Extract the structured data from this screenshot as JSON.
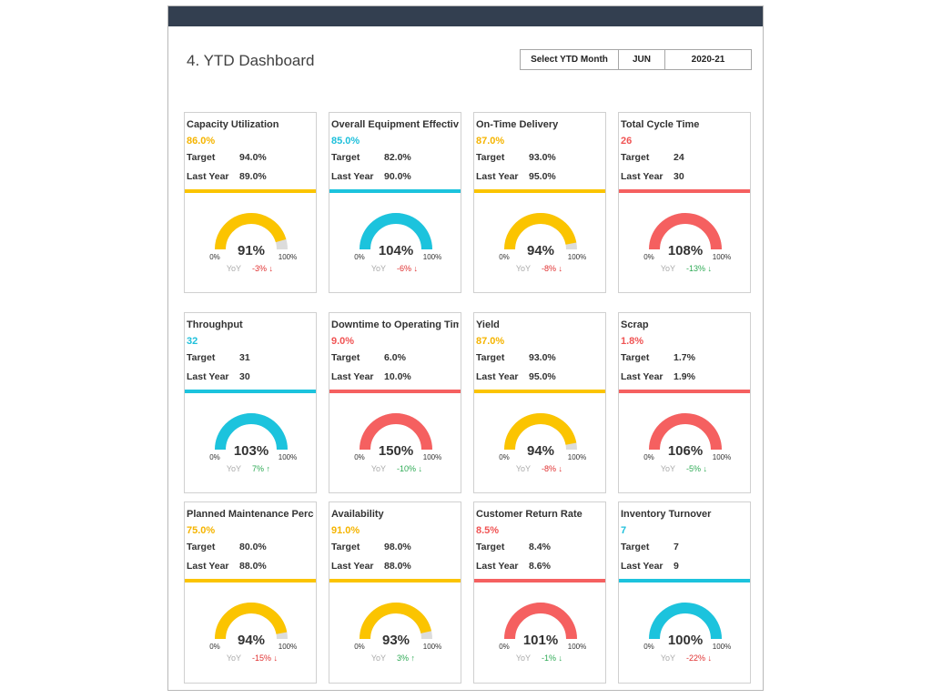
{
  "page": {
    "title": "4. YTD Dashboard"
  },
  "selector": {
    "label": "Select YTD Month",
    "month": "JUN",
    "year": "2020-21"
  },
  "colors": {
    "yellow": "#fbc400",
    "cyan": "#1cc3dd",
    "red": "#f56060",
    "gauge_track": "#dcdcdc",
    "up_green": "#2eaa55",
    "down_red": "#e03030"
  },
  "gauge_labels": {
    "min": "0%",
    "max": "100%",
    "yoy": "YoY"
  },
  "cards": [
    {
      "title": "Capacity Utilization",
      "value": "86.0%",
      "target_label": "Target",
      "target": "94.0%",
      "last_label": "Last Year",
      "last": "89.0%",
      "color": "yellow",
      "fraction": 0.91,
      "percent": "91%",
      "yoy": "-3% ↓",
      "yoy_dir": "red"
    },
    {
      "title": "Overall Equipment Effectiveness",
      "value": "85.0%",
      "target_label": "Target",
      "target": "82.0%",
      "last_label": "Last Year",
      "last": "90.0%",
      "color": "cyan",
      "fraction": 1.0,
      "percent": "104%",
      "yoy": "-6% ↓",
      "yoy_dir": "red"
    },
    {
      "title": "On-Time Delivery",
      "value": "87.0%",
      "target_label": "Target",
      "target": "93.0%",
      "last_label": "Last Year",
      "last": "95.0%",
      "color": "yellow",
      "fraction": 0.94,
      "percent": "94%",
      "yoy": "-8% ↓",
      "yoy_dir": "red"
    },
    {
      "title": "Total Cycle Time",
      "value": "26",
      "target_label": "Target",
      "target": "24",
      "last_label": "Last Year",
      "last": "30",
      "color": "red",
      "fraction": 1.0,
      "percent": "108%",
      "yoy": "-13% ↓",
      "yoy_dir": "green"
    },
    {
      "title": "Throughput",
      "value": "32",
      "target_label": "Target",
      "target": "31",
      "last_label": "Last Year",
      "last": "30",
      "color": "cyan",
      "fraction": 1.0,
      "percent": "103%",
      "yoy": "7% ↑",
      "yoy_dir": "green"
    },
    {
      "title": "Downtime to Operating Time",
      "value": "9.0%",
      "target_label": "Target",
      "target": "6.0%",
      "last_label": "Last Year",
      "last": "10.0%",
      "color": "red",
      "fraction": 1.0,
      "percent": "150%",
      "yoy": "-10% ↓",
      "yoy_dir": "green"
    },
    {
      "title": "Yield",
      "value": "87.0%",
      "target_label": "Target",
      "target": "93.0%",
      "last_label": "Last Year",
      "last": "95.0%",
      "color": "yellow",
      "fraction": 0.94,
      "percent": "94%",
      "yoy": "-8% ↓",
      "yoy_dir": "red"
    },
    {
      "title": "Scrap",
      "value": "1.8%",
      "target_label": "Target",
      "target": "1.7%",
      "last_label": "Last Year",
      "last": "1.9%",
      "color": "red",
      "fraction": 1.0,
      "percent": "106%",
      "yoy": "-5% ↓",
      "yoy_dir": "green"
    },
    {
      "title": "Planned Maintenance Percentage",
      "value": "75.0%",
      "target_label": "Target",
      "target": "80.0%",
      "last_label": "Last Year",
      "last": "88.0%",
      "color": "yellow",
      "fraction": 0.94,
      "percent": "94%",
      "yoy": "-15% ↓",
      "yoy_dir": "red"
    },
    {
      "title": "Availability",
      "value": "91.0%",
      "target_label": "Target",
      "target": "98.0%",
      "last_label": "Last Year",
      "last": "88.0%",
      "color": "yellow",
      "fraction": 0.93,
      "percent": "93%",
      "yoy": "3% ↑",
      "yoy_dir": "green"
    },
    {
      "title": "Customer Return Rate",
      "value": "8.5%",
      "target_label": "Target",
      "target": "8.4%",
      "last_label": "Last Year",
      "last": "8.6%",
      "color": "red",
      "fraction": 1.0,
      "percent": "101%",
      "yoy": "-1% ↓",
      "yoy_dir": "green"
    },
    {
      "title": "Inventory Turnover",
      "value": "7",
      "target_label": "Target",
      "target": "7",
      "last_label": "Last Year",
      "last": "9",
      "color": "cyan",
      "fraction": 1.0,
      "percent": "100%",
      "yoy": "-22% ↓",
      "yoy_dir": "red"
    }
  ]
}
